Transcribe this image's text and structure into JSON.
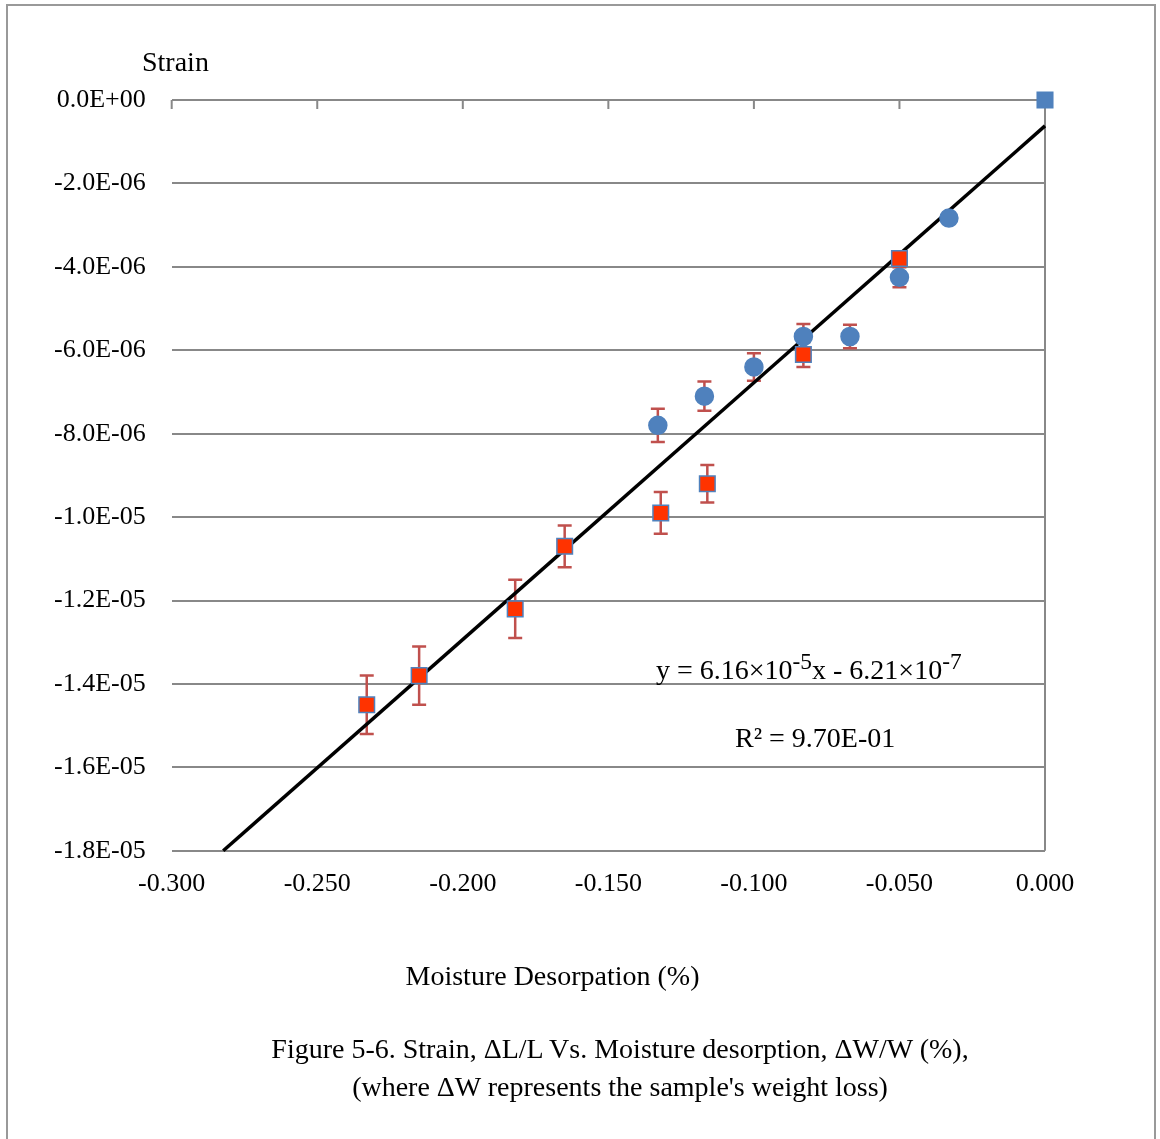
{
  "chart_data": {
    "type": "scatter",
    "xlabel": "Moisture Desorpation (%)",
    "ylabel": "Strain",
    "xlim": [
      -0.3,
      0
    ],
    "ylim": [
      -1.8e-05,
      0
    ],
    "xticks": [
      {
        "value": -0.3,
        "label": "-0.300"
      },
      {
        "value": -0.25,
        "label": "-0.250"
      },
      {
        "value": -0.2,
        "label": "-0.200"
      },
      {
        "value": -0.15,
        "label": "-0.150"
      },
      {
        "value": -0.1,
        "label": "-0.100"
      },
      {
        "value": -0.05,
        "label": "-0.050"
      },
      {
        "value": 0,
        "label": "0.000"
      }
    ],
    "yticks": [
      {
        "value": 0,
        "label": "0.0E+00"
      },
      {
        "value": -2e-06,
        "label": "-2.0E-06"
      },
      {
        "value": -4e-06,
        "label": "-4.0E-06"
      },
      {
        "value": -6e-06,
        "label": "-6.0E-06"
      },
      {
        "value": -8e-06,
        "label": "-8.0E-06"
      },
      {
        "value": -1e-05,
        "label": "-1.0E-05"
      },
      {
        "value": -1.2e-05,
        "label": "-1.2E-05"
      },
      {
        "value": -1.4e-05,
        "label": "-1.4E-05"
      },
      {
        "value": -1.6e-05,
        "label": "-1.6E-05"
      },
      {
        "value": -1.8e-05,
        "label": "-1.8E-05"
      }
    ],
    "grid": "y",
    "legend": false,
    "series": [
      {
        "type": "scatter",
        "marker": "circle",
        "color": "#4f81bd",
        "x": [
          -0.133,
          -0.117,
          -0.1,
          -0.083,
          -0.067,
          -0.05,
          -0.033
        ],
        "values": [
          -7.8e-06,
          -7.1e-06,
          -6.4e-06,
          -5.67e-06,
          -5.67e-06,
          -4.25e-06,
          -2.83e-06
        ],
        "errors": [
          4e-07,
          3.5e-07,
          3.3e-07,
          3e-07,
          2.8e-07,
          2.4e-07,
          null
        ]
      },
      {
        "type": "scatter",
        "marker": "square",
        "color": "#ff3300",
        "x": [
          -0.233,
          -0.215,
          -0.182,
          -0.165,
          -0.132,
          -0.116,
          -0.083,
          -0.05
        ],
        "values": [
          -1.45e-05,
          -1.38e-05,
          -1.22e-05,
          -1.07e-05,
          -9.9e-06,
          -9.2e-06,
          -6.1e-06,
          -3.8e-06
        ],
        "errors": [
          7e-07,
          7e-07,
          7e-07,
          5e-07,
          5e-07,
          4.5e-07,
          3e-07,
          null
        ]
      },
      {
        "type": "scatter",
        "marker": "square",
        "color": "#4f81bd",
        "x": [
          0
        ],
        "values": [
          0
        ]
      },
      {
        "type": "line",
        "marker": "none",
        "color": "#000000",
        "x": [
          -0.2823,
          0
        ],
        "values": [
          -1.8e-05,
          -6.21e-07
        ]
      }
    ],
    "annotations": [
      "y = 6.16×10$^{-5}$x - 6.21×10$^{-7}$",
      "R² = 9.70E-01",
      "Figure 5-6. Strain, ΔL/L Vs. Moisture desorption, ΔW/W (%),\n(where ΔW represents the sample's weight loss)"
    ]
  }
}
